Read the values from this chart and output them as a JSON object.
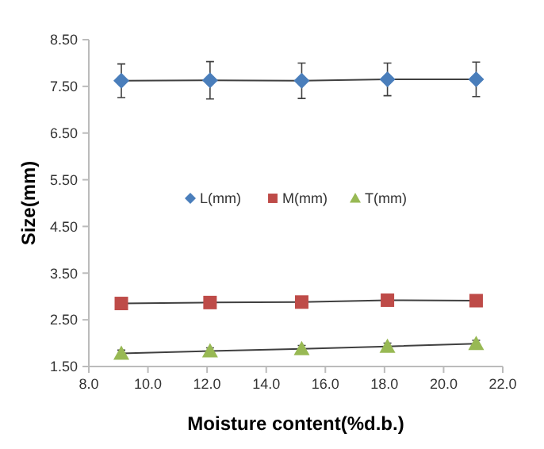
{
  "chart_data": {
    "type": "line",
    "xlabel": "Moisture content(%d.b.)",
    "ylabel": "Size(mm)",
    "xlim": [
      8,
      22
    ],
    "xticks": [
      {
        "value": 8,
        "label": "8.0"
      },
      {
        "value": 10,
        "label": "10.0"
      },
      {
        "value": 12,
        "label": "12.0"
      },
      {
        "value": 14,
        "label": "14.0"
      },
      {
        "value": 16,
        "label": "16.0"
      },
      {
        "value": 18,
        "label": "18.0"
      },
      {
        "value": 20,
        "label": "20.0"
      },
      {
        "value": 22,
        "label": "22.0"
      }
    ],
    "ylim": [
      1.5,
      8.5
    ],
    "yticks": [
      {
        "value": 1.5,
        "label": "1.50"
      },
      {
        "value": 2.5,
        "label": "2.50"
      },
      {
        "value": 3.5,
        "label": "3.50"
      },
      {
        "value": 4.5,
        "label": "4.50"
      },
      {
        "value": 5.5,
        "label": "5.50"
      },
      {
        "value": 6.5,
        "label": "6.50"
      },
      {
        "value": 7.5,
        "label": "7.50"
      },
      {
        "value": 8.5,
        "label": "8.50"
      }
    ],
    "x": [
      9.1,
      12.1,
      15.2,
      18.1,
      21.1
    ],
    "grid": false,
    "legend": "right",
    "series": [
      {
        "name": "L(mm)",
        "color": "#4a7ebb",
        "marker": "diamond",
        "values": [
          7.62,
          7.63,
          7.62,
          7.65,
          7.65
        ],
        "errors": [
          0.36,
          0.4,
          0.38,
          0.35,
          0.37
        ]
      },
      {
        "name": "M(mm)",
        "color": "#be4b48",
        "marker": "square",
        "values": [
          2.85,
          2.87,
          2.88,
          2.92,
          2.91
        ]
      },
      {
        "name": "T(mm)",
        "color": "#98b954",
        "marker": "triangle",
        "values": [
          1.78,
          1.83,
          1.88,
          1.93,
          1.99
        ],
        "errors": [
          0.07,
          0.07,
          0.07,
          0.07,
          0.07
        ]
      }
    ]
  }
}
